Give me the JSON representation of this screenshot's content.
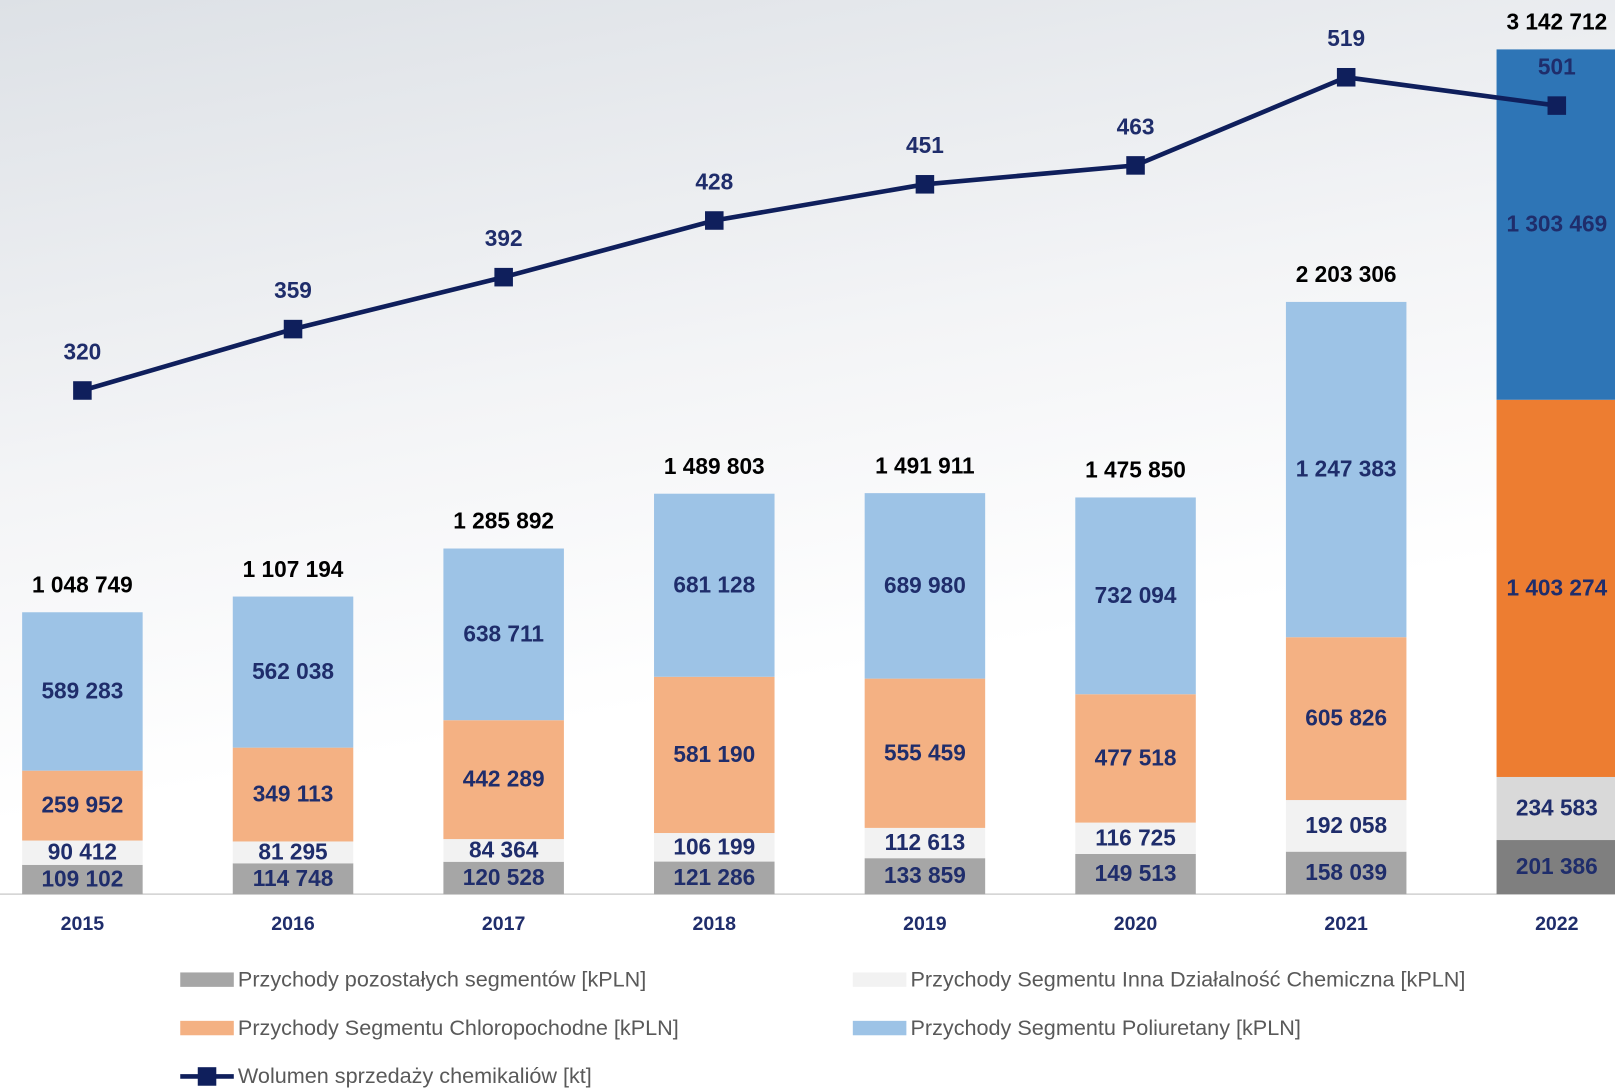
{
  "chart_data": {
    "type": "stacked-bar-line",
    "categories": [
      "2015",
      "2016",
      "2017",
      "2018",
      "2019",
      "2020",
      "2021",
      "2022"
    ],
    "series": [
      {
        "name": "Przychody pozostałych segmentów [kPLN]",
        "color": "#a6a6a6",
        "colors": [
          "#a6a6a6",
          "#a6a6a6",
          "#a6a6a6",
          "#a6a6a6",
          "#a6a6a6",
          "#a6a6a6",
          "#a6a6a6",
          "#7f7f7f"
        ],
        "values": [
          109102,
          114748,
          120528,
          121286,
          133859,
          149513,
          158039,
          201386
        ],
        "value_labels": [
          "109 102",
          "114 748",
          "120 528",
          "121 286",
          "133 859",
          "149 513",
          "158 039",
          "201 386"
        ]
      },
      {
        "name": "Przychody Segmentu Inna Działalność Chemiczna [kPLN]",
        "color": "#f2f2f2",
        "colors": [
          "#f2f2f2",
          "#f2f2f2",
          "#f2f2f2",
          "#f2f2f2",
          "#f2f2f2",
          "#f2f2f2",
          "#f2f2f2",
          "#d9d9d9"
        ],
        "values": [
          90412,
          81295,
          84364,
          106199,
          112613,
          116725,
          192058,
          234583
        ],
        "value_labels": [
          "90 412",
          "81 295",
          "84 364",
          "106 199",
          "112 613",
          "116 725",
          "192 058",
          "234 583"
        ]
      },
      {
        "name": "Przychody Segmentu Chloropochodne [kPLN]",
        "color": "#f4b183",
        "colors": [
          "#f4b183",
          "#f4b183",
          "#f4b183",
          "#f4b183",
          "#f4b183",
          "#f4b183",
          "#f4b183",
          "#ed7d31"
        ],
        "values": [
          259952,
          349113,
          442289,
          581190,
          555459,
          477518,
          605826,
          1403274
        ],
        "value_labels": [
          "259 952",
          "349 113",
          "442 289",
          "581 190",
          "555 459",
          "477 518",
          "605 826",
          "1 403 274"
        ]
      },
      {
        "name": "Przychody Segmentu Poliuretany [kPLN]",
        "color": "#9dc3e6",
        "colors": [
          "#9dc3e6",
          "#9dc3e6",
          "#9dc3e6",
          "#9dc3e6",
          "#9dc3e6",
          "#9dc3e6",
          "#9dc3e6",
          "#2e75b6"
        ],
        "values": [
          589283,
          562038,
          638711,
          681128,
          689980,
          732094,
          1247383,
          1303469
        ],
        "value_labels": [
          "589 283",
          "562 038",
          "638 711",
          "681 128",
          "689 980",
          "732 094",
          "1 247 383",
          "1 303 469"
        ]
      },
      {
        "name": "Wolumen sprzedaży chemikaliów [kt]",
        "color": "#0f1f5c",
        "type": "line",
        "axis": "y2",
        "values": [
          320,
          359,
          392,
          428,
          451,
          463,
          519,
          501
        ]
      }
    ],
    "totals": [
      1048749,
      1107194,
      1285892,
      1489803,
      1491911,
      1475850,
      2203306,
      3142712
    ],
    "total_labels": [
      "1 048 749",
      "1 107 194",
      "1 285 892",
      "1 489 803",
      "1 491 911",
      "1 475 850",
      "2 203 306",
      "3 142 712"
    ],
    "ylim": [
      0,
      3326000
    ],
    "y2lim": [
      0,
      568
    ]
  }
}
